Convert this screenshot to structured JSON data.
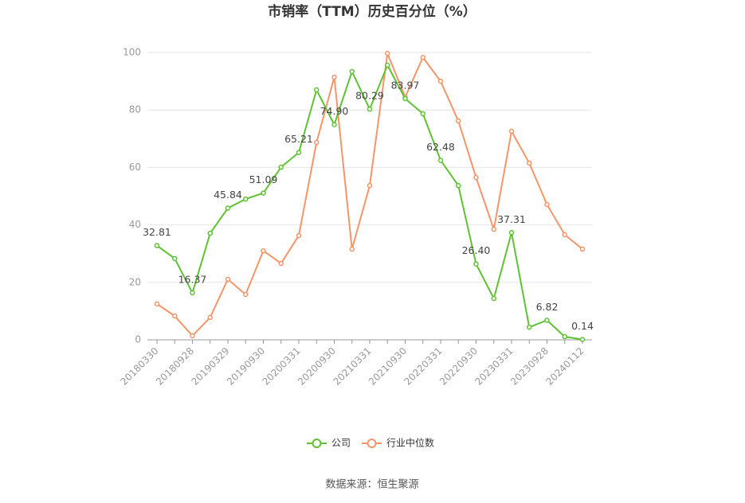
{
  "chart_data": {
    "type": "line",
    "title": "市销率（TTM）历史百分位（%）",
    "source": "数据来源：恒生聚源",
    "categories": [
      "20180330",
      null,
      "20180928",
      null,
      "20190329",
      null,
      "20190930",
      null,
      "20200331",
      null,
      "20200930",
      null,
      "20210331",
      null,
      "20210930",
      null,
      "20220331",
      null,
      "20220930",
      null,
      "20230331",
      null,
      "20230928",
      null,
      "20240112"
    ],
    "series": [
      {
        "name": "公司",
        "color": "#5ec232",
        "values": [
          32.81,
          28.3,
          16.37,
          37.1,
          45.84,
          49.0,
          51.09,
          60.1,
          65.21,
          87.0,
          74.9,
          93.4,
          80.29,
          95.6,
          83.97,
          78.7,
          62.48,
          53.7,
          26.4,
          14.4,
          37.31,
          4.4,
          6.82,
          1.1,
          0.14
        ],
        "value_labels": [
          "32.81",
          null,
          "16.37",
          null,
          "45.84",
          null,
          "51.09",
          null,
          "65.21",
          null,
          "74.90",
          null,
          "80.29",
          null,
          "83.97",
          null,
          "62.48",
          null,
          "26.40",
          null,
          "37.31",
          null,
          "6.82",
          null,
          "0.14"
        ]
      },
      {
        "name": "行业中位数",
        "color": "#f4956a",
        "values": [
          12.5,
          8.3,
          1.4,
          7.8,
          21.1,
          15.8,
          31.0,
          26.6,
          36.3,
          68.7,
          91.4,
          31.6,
          53.7,
          99.7,
          84.5,
          98.3,
          90.0,
          76.2,
          56.5,
          38.5,
          72.6,
          61.5,
          47.1,
          36.6,
          31.6
        ]
      }
    ],
    "ylim": [
      0,
      100
    ],
    "yticks": [
      0,
      20,
      40,
      60,
      80,
      100
    ],
    "grid": true
  }
}
